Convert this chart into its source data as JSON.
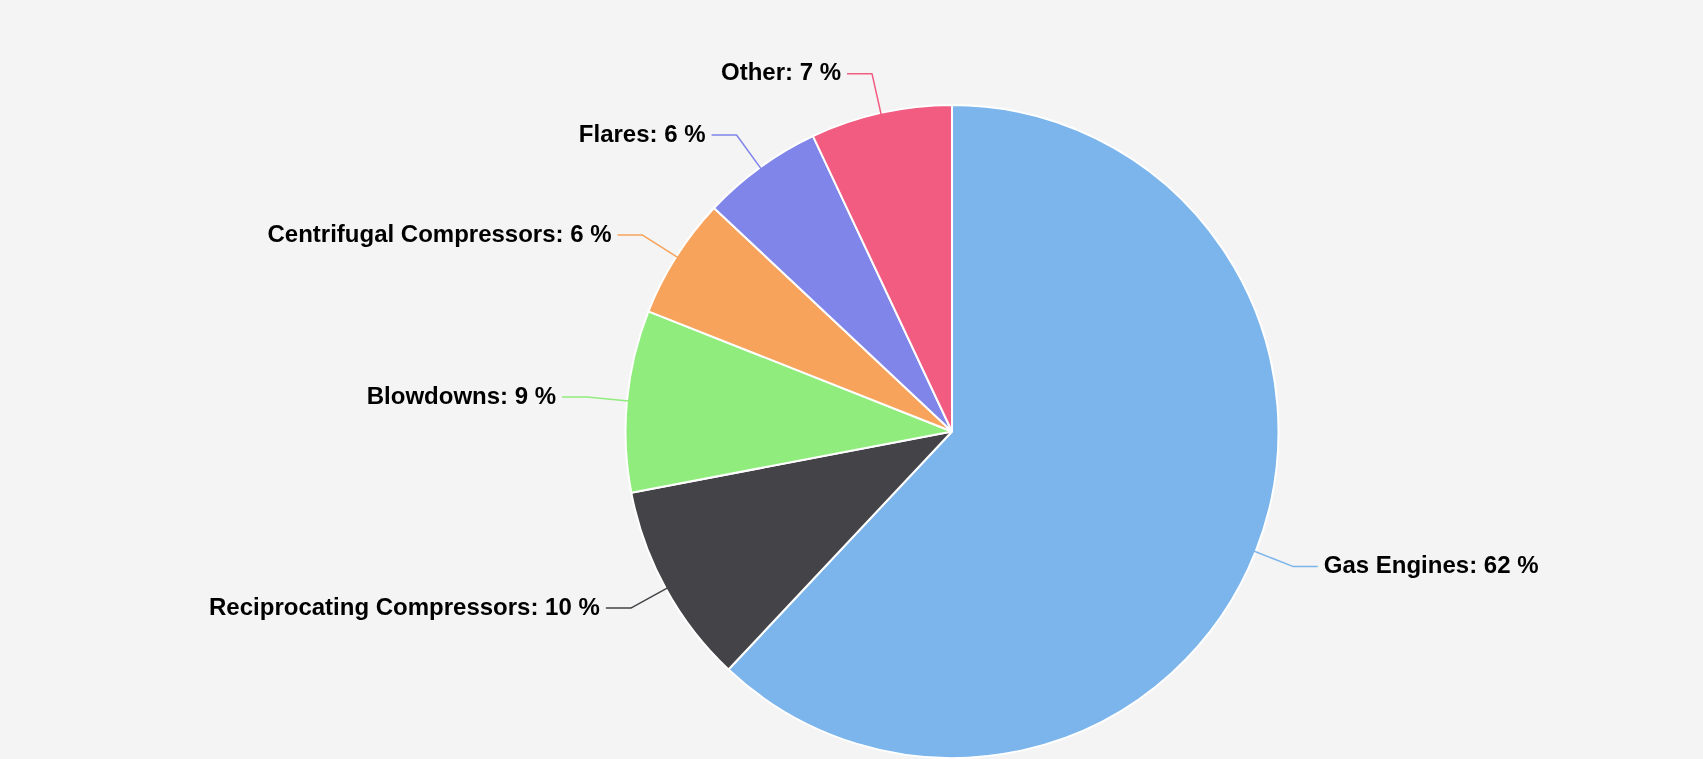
{
  "chart_data": {
    "type": "pie",
    "categories": [
      "Gas Engines",
      "Reciprocating Compressors",
      "Blowdowns",
      "Centrifugal Compressors",
      "Flares",
      "Other"
    ],
    "values": [
      62,
      10,
      9,
      6,
      6,
      7
    ],
    "colors": [
      "#7cb5ec",
      "#434348",
      "#90ed7d",
      "#f7a35c",
      "#8085e9",
      "#f15c80"
    ],
    "value_labels": [
      "62 %",
      "10 %",
      "9 %",
      "6 %",
      "6 %",
      "7 %"
    ],
    "legend": false
  }
}
